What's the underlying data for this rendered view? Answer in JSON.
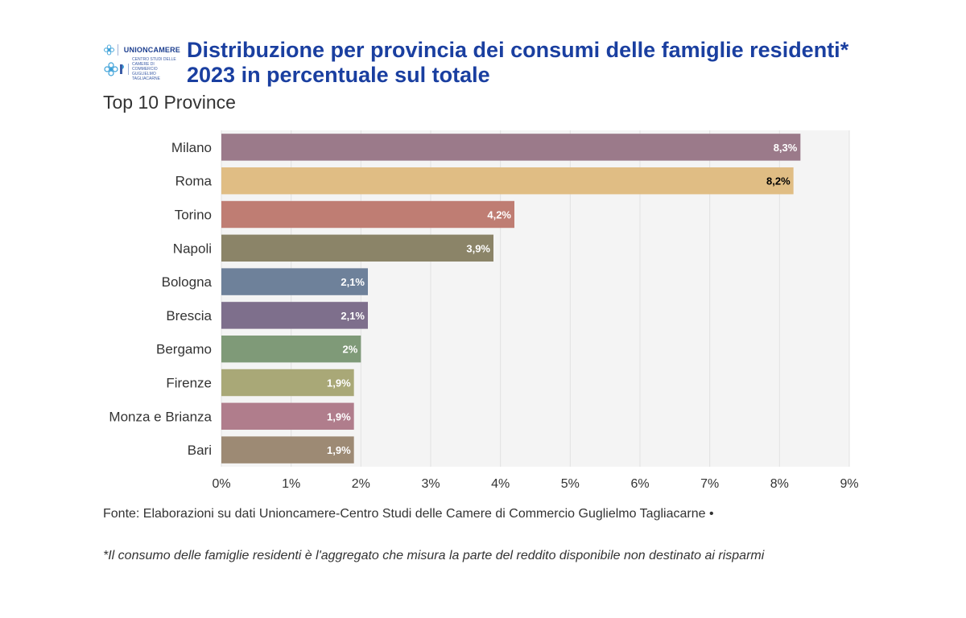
{
  "logo": {
    "name": "UNIONCAMERE",
    "subtext": "CENTRO STUDI DELLE CAMERE DI COMMERCIO GUGLIELMO TAGLIACARNE"
  },
  "title": "Distribuzione per provincia dei consumi delle famiglie residenti* 2023 in percentuale sul totale",
  "subtitle": "Top 10 Province",
  "source": "Fonte: Elaborazioni su dati Unioncamere-Centro Studi delle Camere di Commercio Guglielmo Tagliacarne •",
  "note": "*Il consumo delle famiglie residenti è l'aggregato che misura la parte del reddito disponibile non destinato ai risparmi",
  "chart_data": {
    "type": "bar",
    "orientation": "horizontal",
    "categories": [
      "Milano",
      "Roma",
      "Torino",
      "Napoli",
      "Bologna",
      "Brescia",
      "Bergamo",
      "Firenze",
      "Monza e Brianza",
      "Bari"
    ],
    "values": [
      8.3,
      8.2,
      4.2,
      3.9,
      2.1,
      2.1,
      2.0,
      1.9,
      1.9,
      1.9
    ],
    "data_labels": [
      "8,3%",
      "8,2%",
      "4,2%",
      "3,9%",
      "2,1%",
      "2,1%",
      "2%",
      "1,9%",
      "1,9%",
      "1,9%"
    ],
    "colors": [
      "#9b7a8a",
      "#e0bd84",
      "#bf7d73",
      "#8b8468",
      "#6e819a",
      "#7e6f8c",
      "#7f9a78",
      "#a9a877",
      "#b07d8c",
      "#9d8a74"
    ],
    "label_colors": [
      "#ffffff",
      "#000000",
      "#ffffff",
      "#ffffff",
      "#ffffff",
      "#ffffff",
      "#ffffff",
      "#ffffff",
      "#ffffff",
      "#ffffff"
    ],
    "xlim": [
      0,
      9
    ],
    "x_ticks": [
      0,
      1,
      2,
      3,
      4,
      5,
      6,
      7,
      8,
      9
    ],
    "x_tick_labels": [
      "0%",
      "1%",
      "2%",
      "3%",
      "4%",
      "5%",
      "6%",
      "7%",
      "8%",
      "9%"
    ],
    "grid": true,
    "plot_background": "#f4f4f4"
  }
}
